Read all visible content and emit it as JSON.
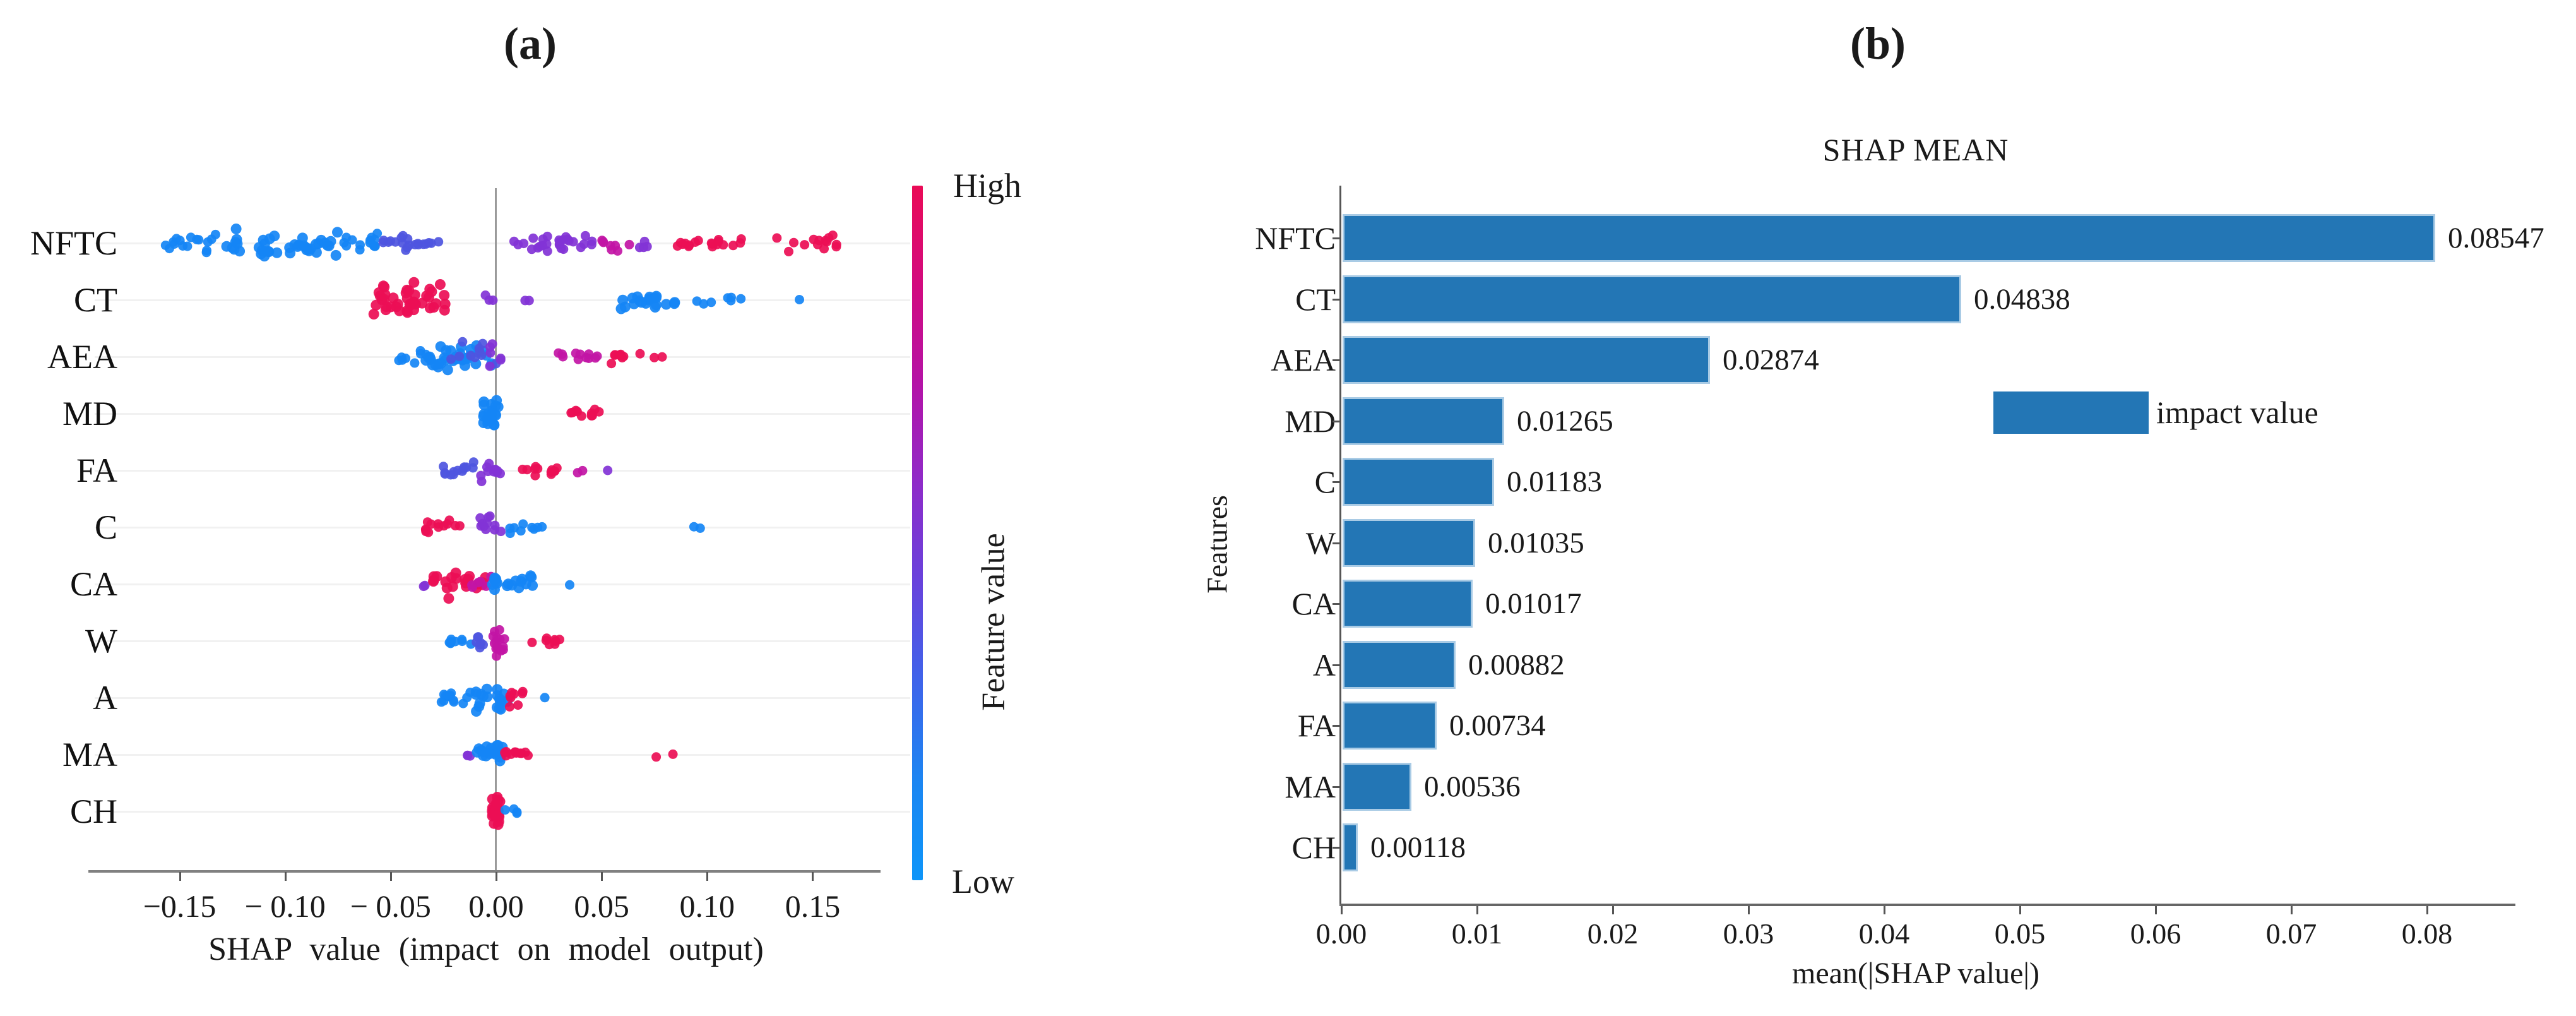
{
  "figure": {
    "panel_a_label": "(a)",
    "panel_b_label": "(b)"
  },
  "chart_data": [
    {
      "type": "scatter",
      "variant": "shap-beeswarm-summary",
      "panel": "(a)",
      "xlabel": "SHAP value (impact on model output)",
      "x_ticks": [
        "−0.15",
        "− 0.10",
        "− 0.05",
        "0.00",
        "0.05",
        "0.10",
        "0.15"
      ],
      "x_tick_values": [
        -0.15,
        -0.1,
        -0.05,
        0.0,
        0.05,
        0.1,
        0.15
      ],
      "xlim": [
        -0.17,
        0.17
      ],
      "grid": true,
      "legend_position": "colorbar-right",
      "colorbar": {
        "high_label": "High",
        "low_label": "Low",
        "title": "Feature value",
        "gradient_top_to_bottom": [
          "#ea0a56",
          "#d30a7e",
          "#b313a8",
          "#8e2bc9",
          "#6842dc",
          "#3f63ea",
          "#1b86f2",
          "#0d95f9"
        ],
        "palette": {
          "low": "#1585f5",
          "mid_low": "#4e55e0",
          "mid": "#8233d6",
          "mid_high": "#c215a5",
          "high": "#ec0e55"
        }
      },
      "features": [
        {
          "name": "NFTC",
          "clusters": [
            {
              "x": [
                -0.157,
                -0.128
              ],
              "n": 16,
              "level": "low",
              "spread": 22
            },
            {
              "x": [
                -0.128,
                -0.1
              ],
              "n": 20,
              "level": "low",
              "spread": 26
            },
            {
              "x": [
                -0.1,
                -0.074
              ],
              "n": 22,
              "level": "low",
              "spread": 27
            },
            {
              "x": [
                -0.074,
                -0.056
              ],
              "n": 14,
              "level": "low",
              "spread": 24
            },
            {
              "x": [
                -0.056,
                -0.04
              ],
              "n": 12,
              "level": "mid_low",
              "spread": 20
            },
            {
              "x": [
                -0.04,
                -0.027
              ],
              "n": 8,
              "level": "mid_low",
              "spread": 14
            },
            {
              "x": [
                0.006,
                0.03
              ],
              "n": 14,
              "level": "mid",
              "spread": 20
            },
            {
              "x": [
                0.03,
                0.05
              ],
              "n": 14,
              "level": "mid",
              "spread": 22
            },
            {
              "x": [
                0.05,
                0.064
              ],
              "n": 8,
              "level": "mid_high",
              "spread": 16
            },
            {
              "x": [
                0.064,
                0.072
              ],
              "n": 4,
              "level": "mid",
              "spread": 12
            },
            {
              "x": [
                0.076,
                0.096
              ],
              "n": 8,
              "level": "high",
              "spread": 13
            },
            {
              "x": [
                0.1,
                0.124
              ],
              "n": 10,
              "level": "high",
              "spread": 14
            },
            {
              "x": [
                0.13,
                0.163
              ],
              "n": 14,
              "level": "high",
              "spread": 17
            }
          ]
        },
        {
          "name": "CT",
          "clusters": [
            {
              "x": [
                -0.058,
                -0.024
              ],
              "n": 42,
              "level": "high",
              "spread": 33
            },
            {
              "x": [
                -0.006,
                0.001
              ],
              "n": 3,
              "level": "mid",
              "spread": 12
            },
            {
              "x": [
                0.012,
                0.018
              ],
              "n": 2,
              "level": "mid",
              "spread": 8
            },
            {
              "x": [
                0.055,
                0.092
              ],
              "n": 20,
              "level": "low",
              "spread": 17
            },
            {
              "x": [
                0.092,
                0.116
              ],
              "n": 7,
              "level": "low",
              "spread": 11
            },
            {
              "x": [
                0.142,
                0.147
              ],
              "n": 1,
              "level": "low",
              "spread": 4
            }
          ]
        },
        {
          "name": "AEA",
          "clusters": [
            {
              "x": [
                -0.048,
                -0.032
              ],
              "n": 8,
              "level": "low",
              "spread": 16
            },
            {
              "x": [
                -0.034,
                -0.001
              ],
              "n": 34,
              "level": "low",
              "spread": 32
            },
            {
              "x": [
                -0.022,
                0.003
              ],
              "n": 10,
              "level": "mid_low",
              "spread": 30
            },
            {
              "x": [
                -0.004,
                0.004
              ],
              "n": 6,
              "level": "mid",
              "spread": 26
            },
            {
              "x": [
                0.028,
                0.05
              ],
              "n": 11,
              "level": "mid_high",
              "spread": 17
            },
            {
              "x": [
                0.048,
                0.071
              ],
              "n": 9,
              "level": "high",
              "spread": 13
            },
            {
              "x": [
                0.074,
                0.081
              ],
              "n": 2,
              "level": "high",
              "spread": 6
            }
          ]
        },
        {
          "name": "MD",
          "clusters": [
            {
              "x": [
                -0.006,
                0.001
              ],
              "n": 22,
              "level": "low",
              "spread": 36
            },
            {
              "x": [
                0.033,
                0.054
              ],
              "n": 10,
              "level": "high",
              "spread": 9
            }
          ]
        },
        {
          "name": "FA",
          "clusters": [
            {
              "x": [
                -0.025,
                -0.009
              ],
              "n": 13,
              "level": "mid_low",
              "spread": 21
            },
            {
              "x": [
                -0.009,
                0.004
              ],
              "n": 11,
              "level": "mid",
              "spread": 25
            },
            {
              "x": [
                0.011,
                0.032
              ],
              "n": 12,
              "level": "high",
              "spread": 15
            },
            {
              "x": [
                0.037,
                0.043
              ],
              "n": 2,
              "level": "mid_high",
              "spread": 6
            },
            {
              "x": [
                0.052,
                0.056
              ],
              "n": 1,
              "level": "mid",
              "spread": 4
            }
          ]
        },
        {
          "name": "C",
          "clusters": [
            {
              "x": [
                -0.034,
                -0.017
              ],
              "n": 13,
              "level": "high",
              "spread": 15
            },
            {
              "x": [
                -0.008,
                0.004
              ],
              "n": 11,
              "level": "mid",
              "spread": 27
            },
            {
              "x": [
                0.005,
                0.022
              ],
              "n": 9,
              "level": "low",
              "spread": 13
            },
            {
              "x": [
                0.09,
                0.097
              ],
              "n": 2,
              "level": "low",
              "spread": 5
            }
          ]
        },
        {
          "name": "CA",
          "clusters": [
            {
              "x": [
                -0.038,
                -0.03
              ],
              "n": 2,
              "level": "mid",
              "spread": 8
            },
            {
              "x": [
                -0.03,
                -0.004
              ],
              "n": 22,
              "level": "high",
              "spread": 28
            },
            {
              "x": [
                -0.013,
                -0.002
              ],
              "n": 6,
              "level": "mid_high",
              "spread": 20
            },
            {
              "x": [
                -0.002,
                0.02
              ],
              "n": 18,
              "level": "low",
              "spread": 21
            },
            {
              "x": [
                0.031,
                0.036
              ],
              "n": 1,
              "level": "low",
              "spread": 4
            }
          ]
        },
        {
          "name": "W",
          "clusters": [
            {
              "x": [
                -0.023,
                -0.011
              ],
              "n": 9,
              "level": "low",
              "spread": 13
            },
            {
              "x": [
                -0.011,
                -0.003
              ],
              "n": 7,
              "level": "mid_low",
              "spread": 14
            },
            {
              "x": [
                -0.002,
                0.004
              ],
              "n": 15,
              "level": "mid_high",
              "spread": 40
            },
            {
              "x": [
                0.017,
                0.031
              ],
              "n": 8,
              "level": "high",
              "spread": 11
            }
          ]
        },
        {
          "name": "A",
          "clusters": [
            {
              "x": [
                -0.027,
                -0.011
              ],
              "n": 13,
              "level": "low",
              "spread": 17
            },
            {
              "x": [
                -0.011,
                0.006
              ],
              "n": 19,
              "level": "low",
              "spread": 25
            },
            {
              "x": [
                0.006,
                0.013
              ],
              "n": 8,
              "level": "high",
              "spread": 21
            },
            {
              "x": [
                0.023,
                0.027
              ],
              "n": 1,
              "level": "low",
              "spread": 4
            }
          ]
        },
        {
          "name": "MA",
          "clusters": [
            {
              "x": [
                -0.015,
                -0.009
              ],
              "n": 3,
              "level": "mid",
              "spread": 9
            },
            {
              "x": [
                -0.009,
                0.004
              ],
              "n": 20,
              "level": "low",
              "spread": 28
            },
            {
              "x": [
                0.004,
                0.016
              ],
              "n": 11,
              "level": "high",
              "spread": 16
            },
            {
              "x": [
                0.073,
                0.084
              ],
              "n": 2,
              "level": "high",
              "spread": 5
            }
          ]
        },
        {
          "name": "CH",
          "clusters": [
            {
              "x": [
                -0.002,
                0.002
              ],
              "n": 24,
              "level": "high",
              "spread": 44
            },
            {
              "x": [
                0.004,
                0.013
              ],
              "n": 4,
              "level": "low",
              "spread": 7
            }
          ]
        }
      ]
    },
    {
      "type": "bar",
      "orientation": "horizontal",
      "panel": "(b)",
      "title": "SHAP MEAN",
      "ylabel": "Features",
      "xlabel": "mean(|SHAP value|)",
      "categories": [
        "NFTC",
        "CT",
        "AEA",
        "MD",
        "C",
        "W",
        "CA",
        "A",
        "FA",
        "MA",
        "CH"
      ],
      "values": [
        0.08547,
        0.04838,
        0.02874,
        0.01265,
        0.01183,
        0.01035,
        0.01017,
        0.00882,
        0.00734,
        0.00536,
        0.00118
      ],
      "value_labels": [
        "0.08547",
        "0.04838",
        "0.02874",
        "0.01265",
        "0.01183",
        "0.01035",
        "0.01017",
        "0.00882",
        "0.00734",
        "0.00536",
        "0.00118"
      ],
      "x_ticks": [
        "0.00",
        "0.01",
        "0.02",
        "0.03",
        "0.04",
        "0.05",
        "0.06",
        "0.07",
        "0.08"
      ],
      "x_tick_values": [
        0.0,
        0.01,
        0.02,
        0.03,
        0.04,
        0.05,
        0.06,
        0.07,
        0.08
      ],
      "xlim": [
        0,
        0.0862
      ],
      "grid": false,
      "bar_color": "#2376b5",
      "legend": {
        "label": "impact value",
        "position": "center-right"
      }
    }
  ]
}
